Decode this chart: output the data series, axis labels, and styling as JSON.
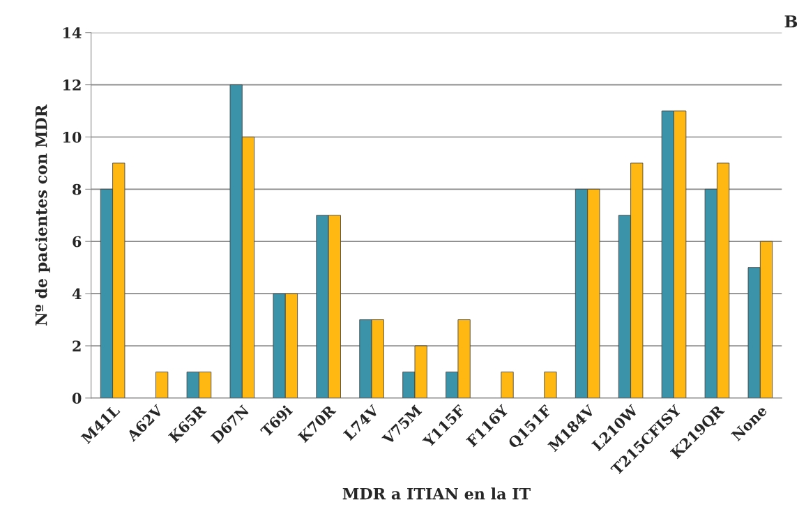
{
  "chart_data": {
    "type": "bar",
    "xlabel": "MDR a ITIAN en la IT",
    "ylabel": "Nº de pacientes con MDR",
    "annotations": [
      "B"
    ],
    "categories": [
      "M41L",
      "A62V",
      "K65R",
      "D67N",
      "T69i",
      "K70R",
      "L74V",
      "V75M",
      "Y115F",
      "F116Y",
      "Q151F",
      "M184V",
      "L210W",
      "T215CFISY",
      "K219QR",
      "None"
    ],
    "series": [
      {
        "color": "#3a93a8",
        "values": [
          8,
          0,
          1,
          12,
          4,
          7,
          3,
          1,
          1,
          0,
          0,
          8,
          7,
          11,
          8,
          5
        ]
      },
      {
        "color": "#ffb812",
        "values": [
          9,
          1,
          1,
          10,
          4,
          7,
          3,
          2,
          3,
          1,
          1,
          8,
          9,
          11,
          9,
          6
        ]
      }
    ],
    "ylim": [
      0,
      14
    ],
    "yticks": [
      0,
      2,
      4,
      6,
      8,
      10,
      12,
      14
    ],
    "grid": "y"
  }
}
